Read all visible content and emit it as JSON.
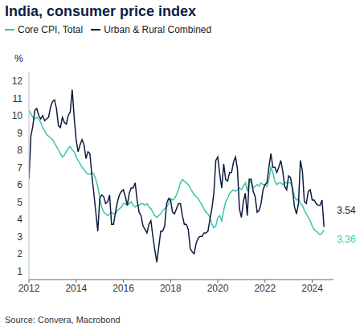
{
  "chart_data": {
    "type": "line",
    "title": "India, consumer price index",
    "y_label": "%",
    "source": "Source: Convera, Macrobond",
    "legend": "top-left",
    "grid": false,
    "x": [
      2012,
      2012.083,
      2012.167,
      2012.25,
      2012.333,
      2012.417,
      2012.5,
      2012.583,
      2012.667,
      2012.75,
      2012.833,
      2012.917,
      2013,
      2013.083,
      2013.167,
      2013.25,
      2013.333,
      2013.417,
      2013.5,
      2013.583,
      2013.667,
      2013.75,
      2013.833,
      2013.917,
      2014,
      2014.083,
      2014.167,
      2014.25,
      2014.333,
      2014.417,
      2014.5,
      2014.583,
      2014.667,
      2014.75,
      2014.833,
      2014.917,
      2015,
      2015.083,
      2015.167,
      2015.25,
      2015.333,
      2015.417,
      2015.5,
      2015.583,
      2015.667,
      2015.75,
      2015.833,
      2015.917,
      2016,
      2016.083,
      2016.167,
      2016.25,
      2016.333,
      2016.417,
      2016.5,
      2016.583,
      2016.667,
      2016.75,
      2016.833,
      2016.917,
      2017,
      2017.083,
      2017.167,
      2017.25,
      2017.333,
      2017.417,
      2017.5,
      2017.583,
      2017.667,
      2017.75,
      2017.833,
      2017.917,
      2018,
      2018.083,
      2018.167,
      2018.25,
      2018.333,
      2018.417,
      2018.5,
      2018.583,
      2018.667,
      2018.75,
      2018.833,
      2018.917,
      2019,
      2019.083,
      2019.167,
      2019.25,
      2019.333,
      2019.417,
      2019.5,
      2019.583,
      2019.667,
      2019.75,
      2019.833,
      2019.917,
      2020,
      2020.083,
      2020.167,
      2020.25,
      2020.333,
      2020.417,
      2020.5,
      2020.583,
      2020.667,
      2020.75,
      2020.833,
      2020.917,
      2021,
      2021.083,
      2021.167,
      2021.25,
      2021.333,
      2021.417,
      2021.5,
      2021.583,
      2021.667,
      2021.75,
      2021.833,
      2021.917,
      2022,
      2022.083,
      2022.167,
      2022.25,
      2022.333,
      2022.417,
      2022.5,
      2022.583,
      2022.667,
      2022.75,
      2022.833,
      2022.917,
      2023,
      2023.083,
      2023.167,
      2023.25,
      2023.333,
      2023.417,
      2023.5,
      2023.583,
      2023.667,
      2023.75,
      2023.833,
      2023.917,
      2024,
      2024.083,
      2024.167,
      2024.25,
      2024.333,
      2024.417,
      2024.5
    ],
    "series": [
      {
        "name": "Core CPI, Total",
        "color": "#3cc5a5",
        "values": [
          10.3,
          10.1,
          9.9,
          9.8,
          9.9,
          9.8,
          9.6,
          9.3,
          9.1,
          8.9,
          8.8,
          8.7,
          8.6,
          8.4,
          8.2,
          8.0,
          7.8,
          7.6,
          7.7,
          7.9,
          8.1,
          8.2,
          8.0,
          7.9,
          7.6,
          7.4,
          7.2,
          7.0,
          6.9,
          6.7,
          6.6,
          6.6,
          6.7,
          6.6,
          6.3,
          5.9,
          5.2,
          4.7,
          4.4,
          4.3,
          4.2,
          4.3,
          4.4,
          4.3,
          4.3,
          4.5,
          4.6,
          4.7,
          4.9,
          4.9,
          4.8,
          4.9,
          5.0,
          4.8,
          4.7,
          4.8,
          4.8,
          4.9,
          4.9,
          4.8,
          4.9,
          4.7,
          4.6,
          4.4,
          4.2,
          4.1,
          4.2,
          4.3,
          4.5,
          4.6,
          4.7,
          4.9,
          5.2,
          5.1,
          5.2,
          5.4,
          5.7,
          6.1,
          6.3,
          6.2,
          6.1,
          6.0,
          5.8,
          5.6,
          5.4,
          5.3,
          5.2,
          5.0,
          4.8,
          4.6,
          4.4,
          4.3,
          4.1,
          3.7,
          3.5,
          3.6,
          4.1,
          4.2,
          3.9,
          4.5,
          5.0,
          5.2,
          5.5,
          5.6,
          5.7,
          5.6,
          5.7,
          5.8,
          5.7,
          5.9,
          6.1,
          5.6,
          6.3,
          6.1,
          5.8,
          5.9,
          6.0,
          5.9,
          6.1,
          6.0,
          6.0,
          5.9,
          6.3,
          7.0,
          6.7,
          6.2,
          6.0,
          6.1,
          6.1,
          6.0,
          6.1,
          6.1,
          6.1,
          6.1,
          5.8,
          5.3,
          5.1,
          5.2,
          4.9,
          4.8,
          4.5,
          4.3,
          4.1,
          3.9,
          3.6,
          3.4,
          3.3,
          3.2,
          3.1,
          3.2,
          3.36
        ]
      },
      {
        "name": "Urban & Rural Combined",
        "color": "#0d1b3e",
        "values": [
          6.3,
          8.8,
          9.4,
          10.3,
          10.4,
          10.0,
          9.8,
          10.0,
          9.7,
          9.8,
          9.9,
          10.5,
          10.8,
          10.9,
          10.4,
          9.4,
          9.3,
          9.9,
          9.6,
          9.5,
          10.0,
          10.2,
          11.5,
          9.9,
          8.6,
          7.9,
          8.3,
          8.6,
          8.3,
          7.5,
          7.9,
          7.8,
          6.5,
          5.5,
          4.4,
          3.3,
          5.2,
          5.4,
          5.3,
          4.9,
          5.0,
          5.4,
          3.7,
          3.7,
          4.4,
          5.0,
          5.4,
          5.6,
          5.7,
          5.3,
          4.8,
          5.5,
          5.8,
          5.8,
          6.1,
          5.1,
          4.4,
          4.2,
          3.6,
          3.4,
          3.2,
          3.7,
          3.9,
          3.0,
          2.2,
          1.5,
          2.4,
          3.3,
          3.3,
          3.6,
          4.9,
          5.2,
          5.1,
          4.4,
          4.3,
          4.6,
          4.9,
          4.9,
          4.2,
          3.7,
          3.7,
          3.4,
          2.3,
          2.1,
          2.0,
          2.6,
          2.9,
          3.0,
          3.0,
          3.2,
          3.2,
          3.3,
          4.0,
          4.6,
          5.5,
          7.4,
          7.6,
          6.6,
          5.8,
          7.2,
          6.3,
          6.2,
          6.7,
          6.7,
          7.3,
          7.6,
          6.9,
          4.6,
          4.1,
          5.0,
          5.5,
          4.2,
          6.3,
          6.3,
          5.6,
          5.3,
          4.4,
          4.5,
          4.9,
          5.7,
          6.0,
          6.1,
          7.0,
          7.8,
          7.0,
          7.0,
          6.7,
          7.0,
          7.4,
          6.8,
          5.9,
          5.7,
          6.5,
          6.4,
          5.7,
          4.7,
          4.3,
          4.9,
          7.4,
          6.8,
          5.0,
          4.9,
          5.6,
          5.7,
          5.1,
          5.1,
          4.9,
          4.8,
          4.8,
          5.1,
          3.54
        ]
      }
    ],
    "annotations": [
      {
        "series": "Urban & Rural Combined",
        "text": "3.54"
      },
      {
        "series": "Core CPI, Total",
        "text": "3.36"
      }
    ],
    "xlim": [
      2012,
      2024.9
    ],
    "xticks": [
      2012,
      2014,
      2016,
      2018,
      2020,
      2022,
      2024
    ],
    "ylim": [
      0.5,
      12.5
    ],
    "yticks": [
      1,
      2,
      3,
      4,
      5,
      6,
      7,
      8,
      9,
      10,
      11,
      12
    ]
  }
}
